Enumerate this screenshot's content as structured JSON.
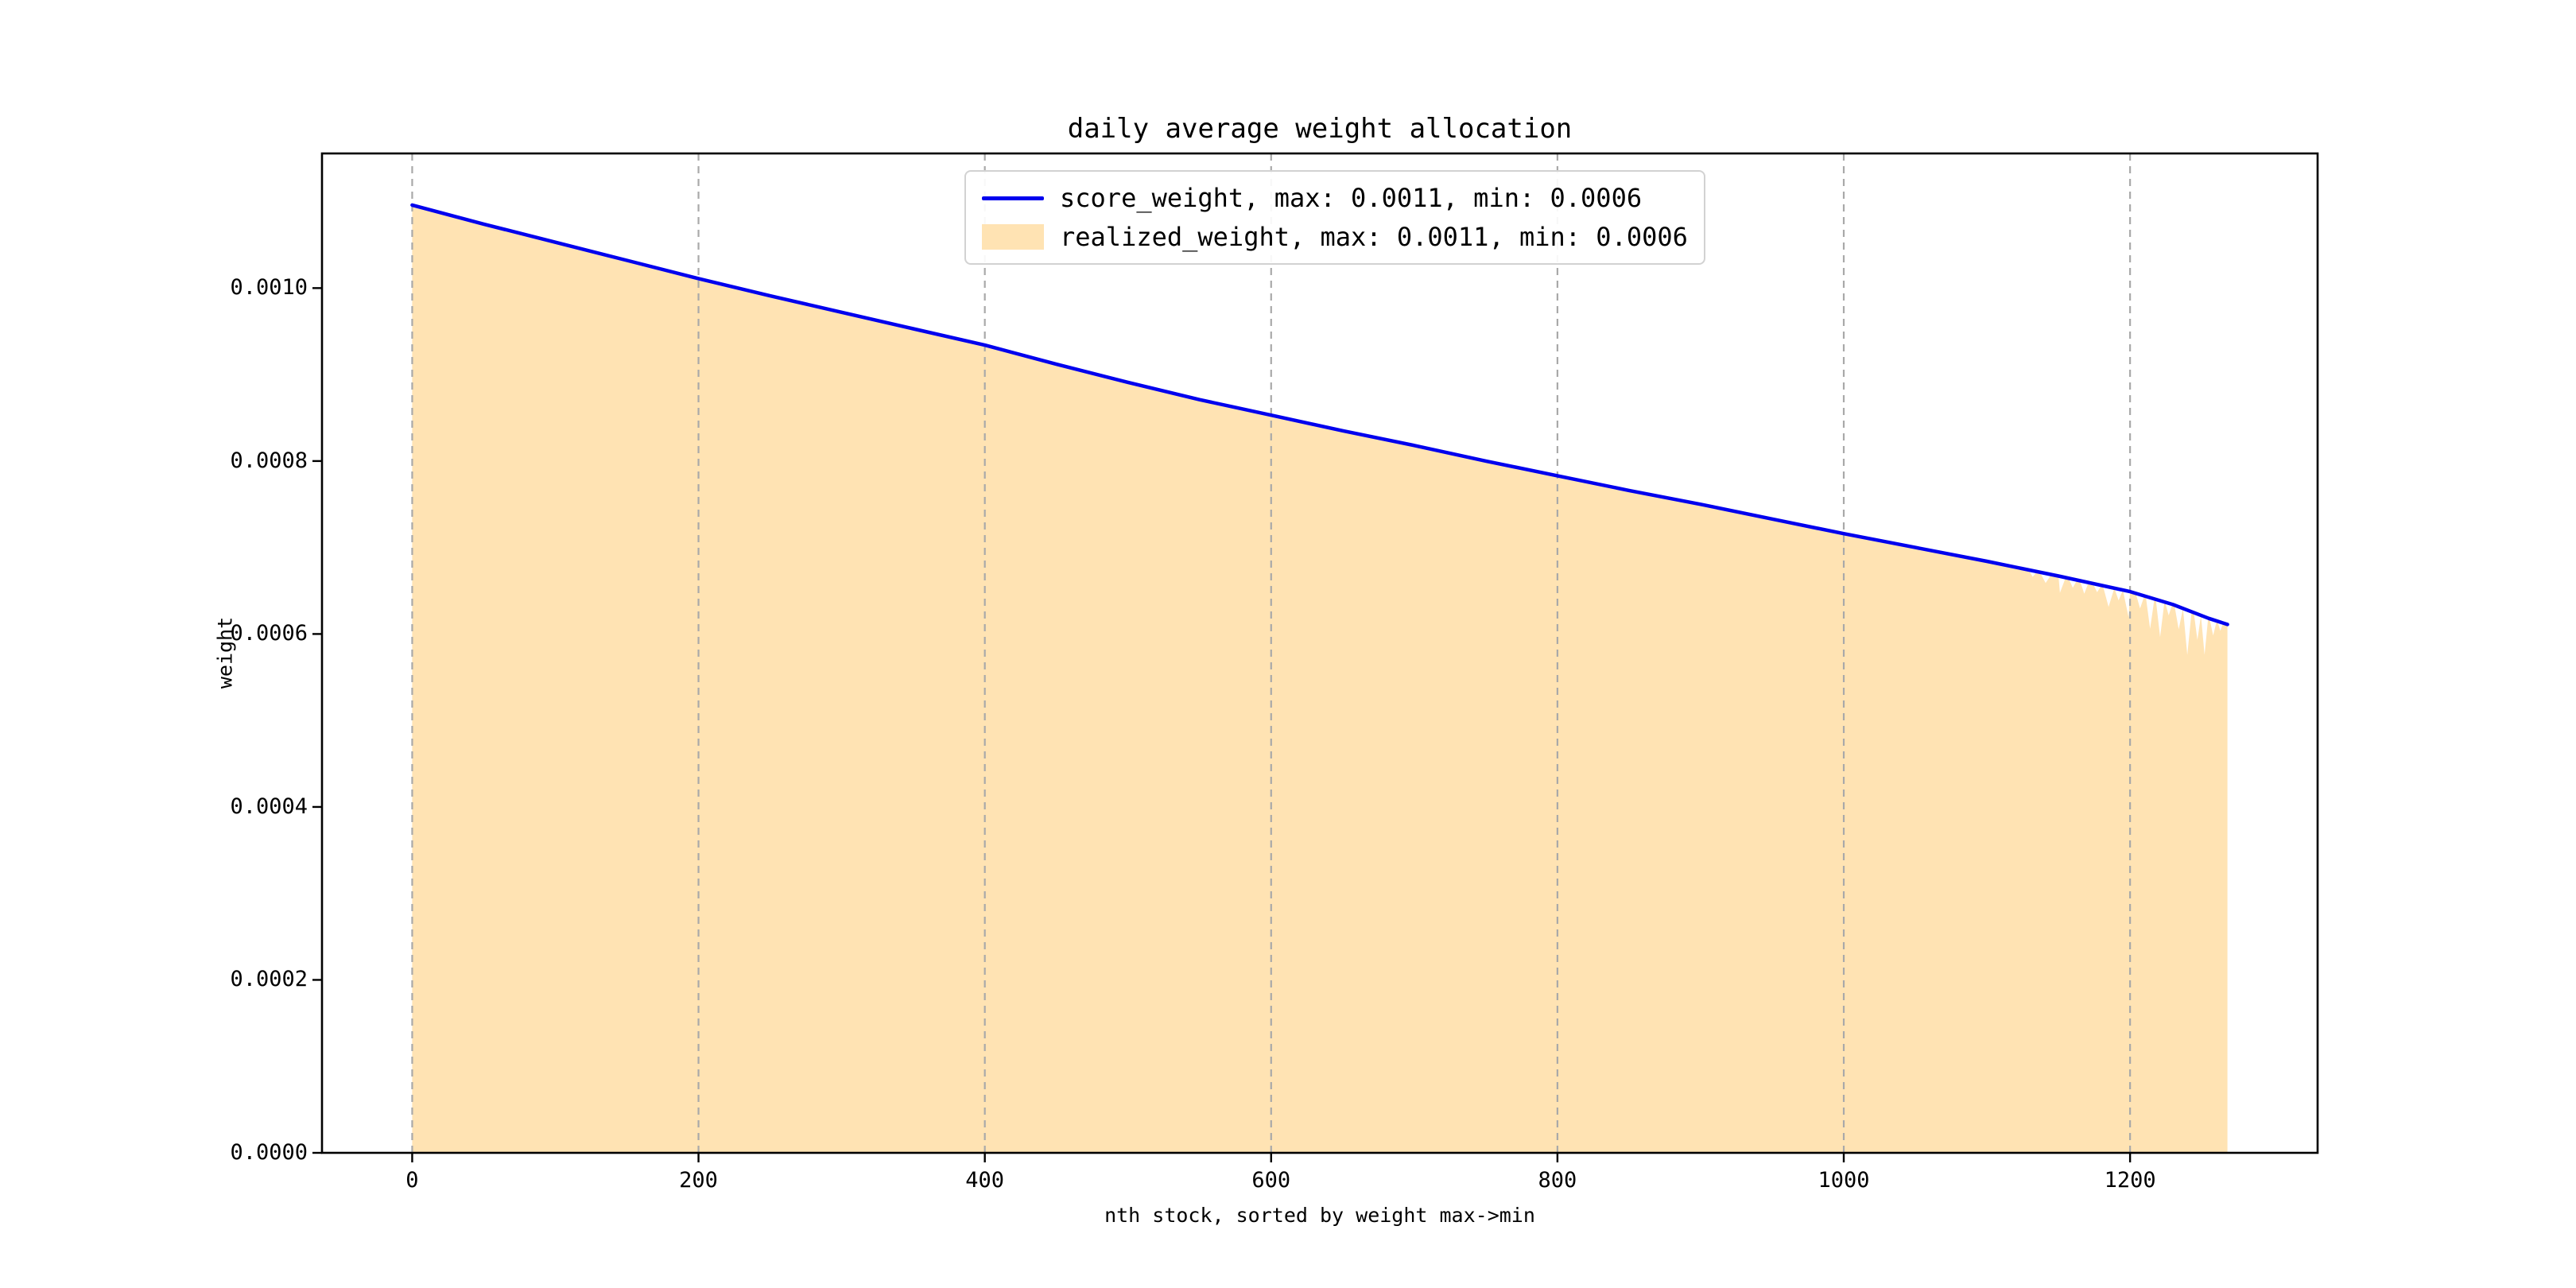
{
  "figure": {
    "background_color": "#ffffff"
  },
  "chart_data": {
    "type": "area",
    "title": "daily average weight allocation",
    "xlabel": "nth stock, sorted by weight max->min",
    "ylabel": "weight",
    "xlim": [
      -63,
      1331
    ],
    "ylim": [
      0,
      0.0011557
    ],
    "xticks": [
      0,
      200,
      400,
      600,
      800,
      1000,
      1200
    ],
    "yticks": [
      0,
      0.0002,
      0.0004,
      0.0006,
      0.0008,
      0.001
    ],
    "ytick_decimals": 4,
    "grid": {
      "vertical": true,
      "horizontal": false,
      "style": "dashed",
      "color": "#a9a9a9"
    },
    "axis_color": "#000000",
    "legend": {
      "position": "upper center",
      "border_color": "#d2d2d2",
      "entries": [
        {
          "label": "score_weight, max: 0.0011, min: 0.0006",
          "type": "line",
          "color": "#0000ee"
        },
        {
          "label": "realized_weight, max: 0.0011, min: 0.0006",
          "type": "area",
          "color": "#ffe3b3"
        }
      ]
    },
    "series": [
      {
        "name": "score_weight",
        "type": "line",
        "color": "#0000ee",
        "line_width": 4.5,
        "x": [
          0,
          50,
          100,
          150,
          200,
          250,
          300,
          350,
          400,
          450,
          500,
          550,
          600,
          650,
          700,
          750,
          800,
          850,
          900,
          950,
          1000,
          1050,
          1100,
          1150,
          1200,
          1230,
          1255,
          1268
        ],
        "y": [
          0.001096,
          0.001074,
          0.001053,
          0.001032,
          0.001011,
          0.000991,
          0.000972,
          0.000953,
          0.000934,
          0.000912,
          0.000891,
          0.000871,
          0.000853,
          0.000835,
          0.000818,
          0.0008,
          0.000783,
          0.000766,
          0.00075,
          0.000733,
          0.000716,
          0.0007,
          0.000684,
          0.000667,
          0.000649,
          0.000634,
          0.000618,
          0.000611
        ]
      },
      {
        "name": "realized_weight",
        "type": "area",
        "color": "#ffe3b3",
        "x": [
          0,
          50,
          100,
          150,
          200,
          250,
          300,
          350,
          400,
          450,
          500,
          550,
          600,
          650,
          700,
          750,
          800,
          850,
          900,
          950,
          1000,
          1050,
          1100,
          1150,
          1200,
          1230,
          1255,
          1268
        ],
        "y": [
          0.001096,
          0.001074,
          0.001053,
          0.001032,
          0.001011,
          0.000991,
          0.000972,
          0.000953,
          0.000934,
          0.000912,
          0.000891,
          0.000871,
          0.000853,
          0.000835,
          0.000818,
          0.0008,
          0.000783,
          0.000766,
          0.00075,
          0.000733,
          0.000716,
          0.0007,
          0.000684,
          0.000667,
          0.000649,
          0.000634,
          0.000618,
          0.000611
        ],
        "tail_notches": [
          {
            "x": 1132,
            "depth": 7e-06,
            "w": 3
          },
          {
            "x": 1141,
            "depth": 1.1e-05,
            "w": 4
          },
          {
            "x": 1151,
            "depth": 1.9e-05,
            "w": 4
          },
          {
            "x": 1160,
            "depth": 1e-05,
            "w": 3
          },
          {
            "x": 1168,
            "depth": 1.4e-05,
            "w": 3
          },
          {
            "x": 1177,
            "depth": 9e-06,
            "w": 3
          },
          {
            "x": 1185,
            "depth": 2.3e-05,
            "w": 4
          },
          {
            "x": 1192,
            "depth": 1.3e-05,
            "w": 3
          },
          {
            "x": 1199,
            "depth": 3e-05,
            "w": 4
          },
          {
            "x": 1207,
            "depth": 1.6e-05,
            "w": 3
          },
          {
            "x": 1214,
            "depth": 3.6e-05,
            "w": 3
          },
          {
            "x": 1221,
            "depth": 4.2e-05,
            "w": 3
          },
          {
            "x": 1227,
            "depth": 1.4e-05,
            "w": 2.5
          },
          {
            "x": 1234,
            "depth": 2.6e-05,
            "w": 3
          },
          {
            "x": 1240,
            "depth": 5.2e-05,
            "w": 3
          },
          {
            "x": 1247,
            "depth": 3e-05,
            "w": 2.5
          },
          {
            "x": 1252,
            "depth": 4.4e-05,
            "w": 2.5
          },
          {
            "x": 1258,
            "depth": 1.8e-05,
            "w": 2.5
          },
          {
            "x": 1263,
            "depth": 1e-05,
            "w": 2
          }
        ]
      }
    ]
  }
}
